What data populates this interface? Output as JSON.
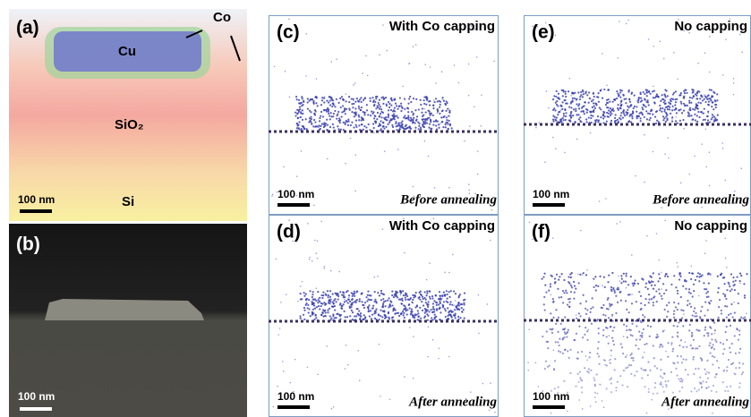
{
  "panels": {
    "a": {
      "label": "(a)",
      "co": "Co",
      "cu": "Cu",
      "sio2": "SiO₂",
      "si": "Si",
      "scale_bar": "100 nm"
    },
    "b": {
      "label": "(b)",
      "scale_bar": "100 nm"
    },
    "c": {
      "label": "(c)",
      "title": "With Co capping",
      "scale_bar": "100 nm",
      "caption": "Before annealing"
    },
    "d": {
      "label": "(d)",
      "title": "With Co capping",
      "scale_bar": "100 nm",
      "caption": "After annealing"
    },
    "e": {
      "label": "(e)",
      "title": "No capping",
      "scale_bar": "100 nm",
      "caption": "Before annealing"
    },
    "f": {
      "label": "(f)",
      "title": "No capping",
      "scale_bar": "100 nm",
      "caption": "After annealing"
    }
  }
}
